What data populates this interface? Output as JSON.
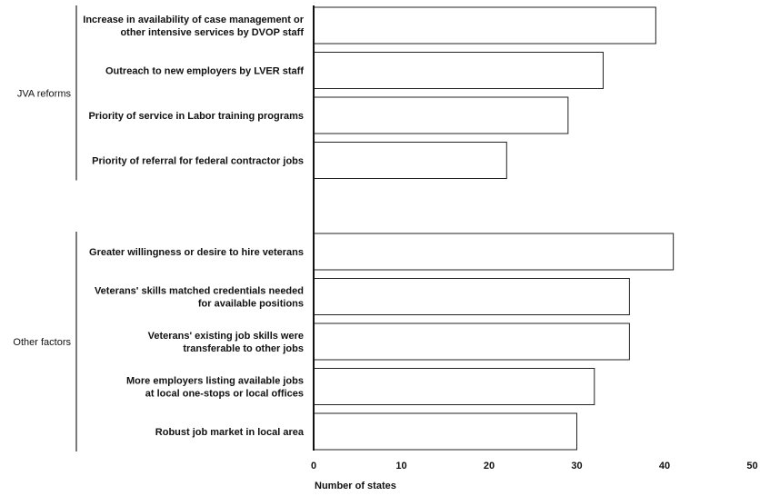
{
  "chart_data": {
    "type": "bar",
    "orientation": "horizontal",
    "xlabel": "Number of states",
    "xlim": [
      0,
      50
    ],
    "xticks": [
      0,
      10,
      20,
      30,
      40,
      50
    ],
    "grid": false,
    "groups": [
      {
        "name": "JVA reforms",
        "categories": [
          [
            "Increase in availability of case management or",
            "other intensive services by DVOP staff"
          ],
          [
            "Outreach to new employers by LVER staff"
          ],
          [
            "Priority of service in Labor training programs"
          ],
          [
            "Priority of referral for federal contractor jobs"
          ]
        ],
        "values": [
          39,
          33,
          29,
          22
        ]
      },
      {
        "name": "Other factors",
        "categories": [
          [
            "Greater willingness or desire to hire veterans"
          ],
          [
            "Veterans' skills matched credentials needed",
            "for available positions"
          ],
          [
            "Veterans' existing job skills were",
            "transferable to other jobs"
          ],
          [
            "More employers listing available jobs",
            "at local one-stops or local offices"
          ],
          [
            "Robust job market in local area"
          ]
        ],
        "values": [
          41,
          36,
          36,
          32,
          30
        ]
      }
    ]
  }
}
